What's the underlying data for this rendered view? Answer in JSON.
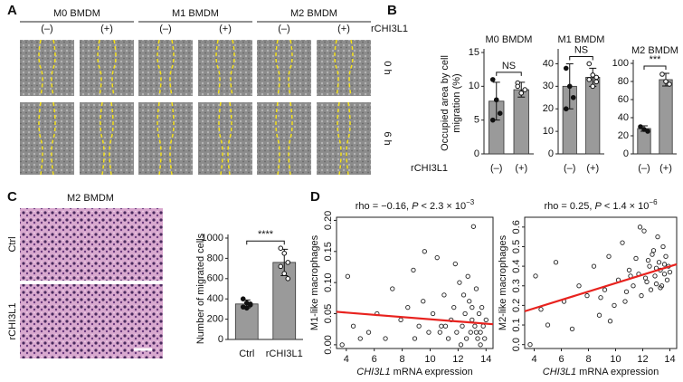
{
  "panel_labels": [
    "A",
    "B",
    "C",
    "D"
  ],
  "panel_a": {
    "groups": [
      "M0 BMDM",
      "M1 BMDM",
      "M2 BMDM"
    ],
    "conditions": [
      "(–)",
      "(+)"
    ],
    "treatment_label": "rCHI3L1",
    "times": [
      "0 h",
      "6 h"
    ]
  },
  "panel_c": {
    "title": "M2 BMDM",
    "rows": [
      "Ctrl",
      "rCHI3L1"
    ]
  },
  "chart_data": [
    {
      "type": "bar",
      "title": "M0 BMDM",
      "ylabel": [
        "Occupied area by cell",
        "migration (%)"
      ],
      "xlabel": "rCHI3L1",
      "categories": [
        "(–)",
        "(+)"
      ],
      "values": [
        7.8,
        9.5
      ],
      "errors": [
        2.8,
        1.1
      ],
      "points": [
        [
          11,
          8,
          6,
          5
        ],
        [
          10.5,
          9,
          9.5,
          10
        ]
      ],
      "ylim": [
        0,
        15
      ],
      "yticks": [
        0,
        5,
        10,
        15
      ],
      "annotation": "NS",
      "color": "#9a9a9a"
    },
    {
      "type": "bar",
      "title": "M1 BMDM",
      "categories": [
        "(–)",
        "(+)"
      ],
      "values": [
        30,
        34
      ],
      "errors": [
        10,
        4
      ],
      "points": [
        [
          38,
          30,
          25,
          20
        ],
        [
          40,
          35,
          32,
          33,
          30,
          34
        ]
      ],
      "ylim": [
        0,
        45
      ],
      "yticks": [
        0,
        10,
        20,
        30,
        40
      ],
      "annotation": "NS",
      "color": "#9a9a9a"
    },
    {
      "type": "bar",
      "title": "M2 BMDM",
      "categories": [
        "(–)",
        "(+)"
      ],
      "values": [
        28,
        82
      ],
      "errors": [
        3,
        7
      ],
      "points": [
        [
          30,
          27,
          25
        ],
        [
          88,
          80,
          77
        ]
      ],
      "ylim": [
        0,
        100
      ],
      "yticks": [
        0,
        20,
        40,
        60,
        80,
        100
      ],
      "annotation": "***",
      "color": "#9a9a9a"
    },
    {
      "type": "bar",
      "ylabel": [
        "Number of migrated cells"
      ],
      "categories": [
        "Ctrl",
        "rCHI3L1"
      ],
      "values": [
        350,
        760
      ],
      "errors": [
        40,
        130
      ],
      "points": [
        [
          400,
          360,
          340,
          320,
          310,
          350
        ],
        [
          900,
          850,
          760,
          720,
          650,
          600
        ]
      ],
      "ylim": [
        0,
        1000
      ],
      "yticks": [
        0,
        200,
        400,
        600,
        800,
        1000
      ],
      "annotation": "****",
      "color": "#9a9a9a"
    },
    {
      "type": "scatter",
      "title_parts": [
        "rho = −0.16, ",
        "P",
        " < 2.3 × 10",
        "−3"
      ],
      "xlabel_parts": [
        "CHI3L1",
        " mRNA expression"
      ],
      "ylabel": [
        "M1-like macrophages"
      ],
      "x": [
        3.7,
        4.1,
        4.5,
        5.0,
        5.6,
        6.2,
        6.8,
        7.3,
        7.9,
        8.4,
        8.8,
        9.2,
        9.5,
        9.9,
        10.2,
        10.5,
        10.8,
        11.0,
        11.3,
        11.5,
        11.7,
        11.9,
        12.1,
        12.3,
        12.5,
        12.6,
        12.8,
        12.9,
        13.0,
        13.1,
        13.2,
        13.3,
        13.4,
        13.5,
        13.6,
        13.7,
        13.8,
        13.9,
        14.0,
        10.7,
        11.8,
        12.2,
        12.7,
        13.0,
        13.3,
        9.6,
        8.9,
        12.4,
        11.1,
        13.6
      ],
      "y": [
        0.0,
        0.11,
        0.03,
        0.01,
        0.02,
        0.05,
        0.01,
        0.09,
        0.04,
        0.06,
        0.12,
        0.03,
        0.07,
        0.02,
        0.05,
        0.14,
        0.03,
        0.08,
        0.01,
        0.04,
        0.06,
        0.02,
        0.1,
        0.03,
        0.05,
        0.01,
        0.07,
        0.02,
        0.04,
        0.19,
        0.03,
        0.09,
        0.01,
        0.05,
        0.02,
        0.06,
        0.03,
        0.01,
        0.04,
        0.02,
        0.13,
        0.0,
        0.11,
        0.06,
        0.02,
        0.15,
        0.01,
        0.08,
        0.03,
        0.0
      ],
      "fit": {
        "x": [
          3.3,
          14.5
        ],
        "y": [
          0.053,
          0.033
        ],
        "color": "#e8221e"
      },
      "xlim": [
        3.3,
        14.5
      ],
      "xticks": [
        4,
        6,
        8,
        10,
        12,
        14
      ],
      "ylim": [
        -0.006,
        0.205
      ],
      "yticks": [
        {
          "value": 0,
          "label": "0.00"
        },
        0.05,
        {
          "value": 0.1,
          "label": "0.10"
        },
        0.15,
        {
          "value": 0.2,
          "label": "0.20"
        }
      ]
    },
    {
      "type": "scatter",
      "title_parts": [
        "rho = 0.25, ",
        "P",
        " < 1.4 × 10",
        "−6"
      ],
      "xlabel_parts": [
        "CHI3L1",
        " mRNA expression"
      ],
      "ylabel": [
        "M2-like macrophages"
      ],
      "x": [
        3.7,
        4.1,
        4.5,
        5.0,
        5.6,
        6.2,
        6.8,
        7.3,
        7.9,
        8.4,
        8.8,
        9.2,
        9.5,
        9.9,
        10.2,
        10.5,
        10.8,
        11.0,
        11.3,
        11.5,
        11.7,
        11.9,
        12.1,
        12.3,
        12.5,
        12.6,
        12.8,
        12.9,
        13.0,
        13.1,
        13.2,
        13.3,
        13.4,
        13.5,
        13.6,
        13.7,
        13.8,
        13.9,
        14.0,
        10.7,
        11.8,
        12.2,
        12.7,
        13.0,
        13.3,
        9.6,
        8.9,
        12.4,
        11.1,
        13.6
      ],
      "y": [
        0.0,
        0.35,
        0.18,
        0.1,
        0.42,
        0.22,
        0.08,
        0.3,
        0.25,
        0.4,
        0.15,
        0.28,
        0.45,
        0.2,
        0.33,
        0.52,
        0.27,
        0.38,
        0.3,
        0.44,
        0.36,
        0.25,
        0.58,
        0.32,
        0.4,
        0.28,
        0.48,
        0.35,
        0.31,
        0.55,
        0.42,
        0.38,
        0.3,
        0.5,
        0.36,
        0.45,
        0.33,
        0.4,
        0.37,
        0.22,
        0.6,
        0.34,
        0.46,
        0.39,
        0.29,
        0.12,
        0.24,
        0.43,
        0.35,
        0.41
      ],
      "fit": {
        "x": [
          3.3,
          14.5
        ],
        "y": [
          0.17,
          0.41
        ],
        "color": "#e8221e"
      },
      "xlim": [
        3.3,
        14.5
      ],
      "xticks": [
        4,
        6,
        8,
        10,
        12,
        14
      ],
      "ylim": [
        -0.02,
        0.65
      ],
      "yticks": [
        {
          "value": 0,
          "label": "0.0"
        },
        0.1,
        0.2,
        0.3,
        0.4,
        0.5,
        0.6
      ]
    }
  ]
}
